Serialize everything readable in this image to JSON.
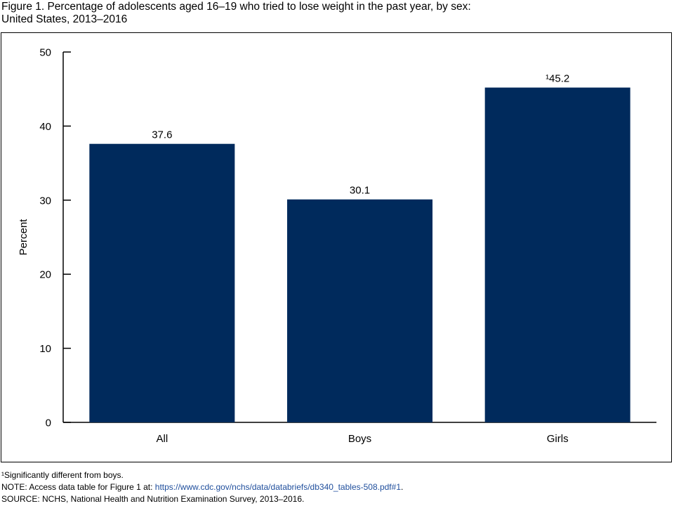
{
  "figure": {
    "title_line1": "Figure 1. Percentage of adolescents aged 16–19 who tried to lose weight in the past year, by sex:",
    "title_line2": "United States, 2013–2016"
  },
  "chart_data": {
    "type": "bar",
    "title": "Figure 1. Percentage of adolescents aged 16–19 who tried to lose weight in the past year, by sex: United States, 2013–2016",
    "xlabel": "",
    "ylabel": "Percent",
    "categories": [
      "All",
      "Boys",
      "Girls"
    ],
    "values": [
      37.6,
      30.1,
      45.2
    ],
    "value_labels": [
      "37.6",
      "30.1",
      "¹45.2"
    ],
    "ylim": [
      0,
      50
    ],
    "yticks": [
      0,
      10,
      20,
      30,
      40,
      50
    ],
    "grid": false,
    "legend": "none",
    "bar_color": "#002a5c"
  },
  "notes": {
    "footnote": "¹Significantly different from boys.",
    "note_prefix": "NOTE: Access data table for Figure 1 at: ",
    "note_link": "https://www.cdc.gov/nchs/data/databriefs/db340_tables-508.pdf#1",
    "note_suffix": ".",
    "source": "SOURCE: NCHS, National Health and Nutrition Examination Survey, 2013–2016."
  },
  "colors": {
    "bar": "#002a5c",
    "link": "#1f4e9c",
    "axis": "#000000"
  }
}
